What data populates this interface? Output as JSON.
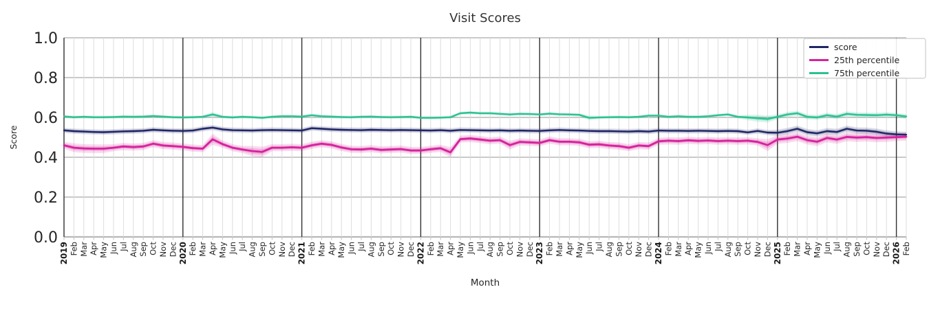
{
  "figure_title": "Visit Scores",
  "style": {
    "background": "#ffffff",
    "h_grid_color": "#b7b7b7",
    "v_grid_color": "#dcdcdc",
    "year_grid_color": "#2f2f2f",
    "tick_stub_color": "#c0c0c0",
    "legend_border_color": "#cccccc",
    "legend_background": "#ffffff",
    "text_color": "#262626"
  },
  "chart_data": {
    "type": "line",
    "title": "Visit Scores",
    "xlabel": "Month",
    "ylabel": "Score",
    "ylim": [
      0.0,
      1.0
    ],
    "yticks": [
      "0.0",
      "0.2",
      "0.4",
      "0.6",
      "0.8",
      "1.0"
    ],
    "grid": "both",
    "legend_position": "upper right",
    "x_tick_labels": [
      "2019",
      "Feb",
      "Mar",
      "Apr",
      "May",
      "Jun",
      "Jul",
      "Aug",
      "Sep",
      "Oct",
      "Nov",
      "Dec",
      "2020",
      "Feb",
      "Mar",
      "Apr",
      "May",
      "Jun",
      "Jul",
      "Aug",
      "Sep",
      "Oct",
      "Nov",
      "Dec",
      "2021",
      "Feb",
      "Mar",
      "Apr",
      "May",
      "Jun",
      "Jul",
      "Aug",
      "Sep",
      "Oct",
      "Nov",
      "Dec",
      "2022",
      "Feb",
      "Mar",
      "Apr",
      "May",
      "Jun",
      "Jul",
      "Aug",
      "Sep",
      "Oct",
      "Nov",
      "Dec",
      "2023",
      "Feb",
      "Mar",
      "Apr",
      "May",
      "Jun",
      "Jul",
      "Aug",
      "Sep",
      "Oct",
      "Nov",
      "Dec",
      "2024",
      "Feb",
      "Mar",
      "Apr",
      "May",
      "Jun",
      "Jul",
      "Aug",
      "Sep",
      "Oct",
      "Nov",
      "Dec",
      "2025",
      "Feb",
      "Mar",
      "Apr",
      "May",
      "Jun",
      "Jul",
      "Aug",
      "Sep",
      "Oct",
      "Nov",
      "Dec",
      "2026",
      "Feb"
    ],
    "series": [
      {
        "name": "score",
        "color": "#1f2566",
        "line_width": 2.4,
        "values": [
          0.535,
          0.531,
          0.529,
          0.527,
          0.526,
          0.528,
          0.53,
          0.531,
          0.533,
          0.538,
          0.535,
          0.533,
          0.532,
          0.534,
          0.543,
          0.549,
          0.54,
          0.536,
          0.535,
          0.534,
          0.536,
          0.537,
          0.536,
          0.535,
          0.534,
          0.546,
          0.543,
          0.54,
          0.538,
          0.537,
          0.536,
          0.538,
          0.537,
          0.536,
          0.537,
          0.536,
          0.535,
          0.534,
          0.536,
          0.533,
          0.537,
          0.536,
          0.535,
          0.534,
          0.535,
          0.533,
          0.534,
          0.533,
          0.532,
          0.535,
          0.537,
          0.535,
          0.534,
          0.532,
          0.531,
          0.531,
          0.53,
          0.529,
          0.531,
          0.529,
          0.534,
          0.533,
          0.533,
          0.532,
          0.533,
          0.532,
          0.531,
          0.532,
          0.531,
          0.525,
          0.532,
          0.524,
          0.523,
          0.531,
          0.543,
          0.526,
          0.52,
          0.531,
          0.527,
          0.543,
          0.534,
          0.533,
          0.528,
          0.519,
          0.515,
          0.513
        ],
        "band": {
          "default": 0.013,
          "overrides": {
            "72": 0.016,
            "73": 0.016,
            "74": 0.016,
            "75": 0.016,
            "76": 0.016,
            "77": 0.016,
            "78": 0.016,
            "79": 0.016,
            "80": 0.016,
            "81": 0.016,
            "82": 0.016,
            "83": 0.016,
            "84": 0.015,
            "85": 0.015
          }
        }
      },
      {
        "name": "25th percentile",
        "color": "#d6219c",
        "line_width": 2.8,
        "values": [
          0.46,
          0.448,
          0.444,
          0.443,
          0.443,
          0.448,
          0.454,
          0.451,
          0.454,
          0.468,
          0.459,
          0.456,
          0.452,
          0.446,
          0.443,
          0.49,
          0.466,
          0.448,
          0.439,
          0.431,
          0.427,
          0.448,
          0.448,
          0.45,
          0.448,
          0.46,
          0.468,
          0.462,
          0.449,
          0.44,
          0.439,
          0.443,
          0.437,
          0.439,
          0.441,
          0.434,
          0.434,
          0.44,
          0.445,
          0.425,
          0.491,
          0.494,
          0.489,
          0.483,
          0.486,
          0.461,
          0.477,
          0.475,
          0.472,
          0.486,
          0.478,
          0.478,
          0.475,
          0.463,
          0.465,
          0.459,
          0.456,
          0.448,
          0.459,
          0.456,
          0.48,
          0.483,
          0.481,
          0.485,
          0.482,
          0.484,
          0.481,
          0.483,
          0.481,
          0.483,
          0.477,
          0.461,
          0.489,
          0.494,
          0.503,
          0.486,
          0.478,
          0.497,
          0.489,
          0.502,
          0.499,
          0.501,
          0.497,
          0.499,
          0.501,
          0.503
        ],
        "band": {
          "default": 0.018,
          "overrides": {
            "1": 0.022,
            "2": 0.022,
            "3": 0.022,
            "4": 0.022,
            "15": 0.028,
            "19": 0.026,
            "20": 0.026,
            "39": 0.026,
            "45": 0.022,
            "71": 0.03,
            "72": 0.022,
            "73": 0.022,
            "74": 0.022,
            "75": 0.022,
            "76": 0.022,
            "77": 0.022,
            "78": 0.022,
            "79": 0.022,
            "80": 0.022,
            "81": 0.022,
            "82": 0.022,
            "83": 0.022,
            "84": 0.02,
            "85": 0.02
          }
        }
      },
      {
        "name": "75th percentile",
        "color": "#2bc192",
        "line_width": 2.4,
        "values": [
          0.605,
          0.601,
          0.603,
          0.601,
          0.601,
          0.602,
          0.604,
          0.603,
          0.604,
          0.607,
          0.604,
          0.601,
          0.6,
          0.601,
          0.603,
          0.615,
          0.603,
          0.6,
          0.603,
          0.601,
          0.598,
          0.603,
          0.606,
          0.606,
          0.604,
          0.611,
          0.606,
          0.604,
          0.602,
          0.601,
          0.603,
          0.604,
          0.602,
          0.601,
          0.602,
          0.603,
          0.598,
          0.598,
          0.599,
          0.601,
          0.621,
          0.624,
          0.621,
          0.621,
          0.618,
          0.615,
          0.618,
          0.617,
          0.615,
          0.619,
          0.616,
          0.615,
          0.613,
          0.598,
          0.6,
          0.601,
          0.602,
          0.601,
          0.603,
          0.609,
          0.609,
          0.603,
          0.606,
          0.603,
          0.603,
          0.606,
          0.611,
          0.615,
          0.603,
          0.6,
          0.596,
          0.592,
          0.603,
          0.615,
          0.621,
          0.603,
          0.6,
          0.611,
          0.604,
          0.618,
          0.613,
          0.612,
          0.611,
          0.614,
          0.611,
          0.605
        ],
        "band": {
          "default": 0.008,
          "overrides": {
            "15": 0.012,
            "53": 0.012,
            "69": 0.014,
            "70": 0.018,
            "71": 0.018,
            "72": 0.013,
            "73": 0.013,
            "74": 0.013,
            "75": 0.013,
            "76": 0.013,
            "77": 0.013,
            "78": 0.013,
            "79": 0.013,
            "80": 0.013,
            "81": 0.013,
            "82": 0.013,
            "83": 0.013,
            "84": 0.012,
            "85": 0.012
          }
        }
      }
    ]
  }
}
